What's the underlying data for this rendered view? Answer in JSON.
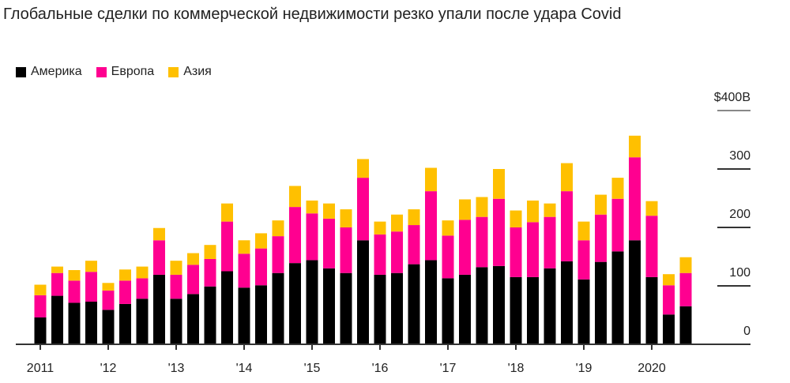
{
  "chart_data": {
    "type": "bar",
    "stacked": true,
    "title": "Глобальные сделки по коммерческой недвижимости резко упали после удара Covid",
    "xlabel": "",
    "ylabel": "",
    "ylim": [
      0,
      400
    ],
    "yticks": [
      0,
      100,
      200,
      300,
      400
    ],
    "ytick_labels": [
      "0",
      "100",
      "200",
      "300",
      "$400B"
    ],
    "xtick_labels": [
      "2011",
      "'12",
      "'13",
      "'14",
      "'15",
      "'16",
      "'17",
      "'18",
      "'19",
      "2020"
    ],
    "categories": [
      "2011 Q1",
      "2011 Q2",
      "2011 Q3",
      "2011 Q4",
      "2012 Q1",
      "2012 Q2",
      "2012 Q3",
      "2012 Q4",
      "2013 Q1",
      "2013 Q2",
      "2013 Q3",
      "2013 Q4",
      "2014 Q1",
      "2014 Q2",
      "2014 Q3",
      "2014 Q4",
      "2015 Q1",
      "2015 Q2",
      "2015 Q3",
      "2015 Q4",
      "2016 Q1",
      "2016 Q2",
      "2016 Q3",
      "2016 Q4",
      "2017 Q1",
      "2017 Q2",
      "2017 Q3",
      "2017 Q4",
      "2018 Q1",
      "2018 Q2",
      "2018 Q3",
      "2018 Q4",
      "2019 Q1",
      "2019 Q2",
      "2019 Q3",
      "2019 Q4",
      "2020 Q1",
      "2020 Q2",
      "2020 Q3"
    ],
    "legend_position": "top-left",
    "series": [
      {
        "name": "Америка",
        "color": "#000000",
        "values": [
          46,
          83,
          71,
          73,
          59,
          69,
          78,
          119,
          78,
          86,
          99,
          125,
          97,
          101,
          122,
          139,
          144,
          130,
          122,
          178,
          119,
          122,
          137,
          144,
          113,
          119,
          132,
          134,
          115,
          115,
          130,
          142,
          111,
          141,
          159,
          178,
          115,
          51,
          65
        ]
      },
      {
        "name": "Европа",
        "color": "#ff0090",
        "values": [
          38,
          39,
          38,
          51,
          33,
          40,
          35,
          59,
          41,
          50,
          47,
          85,
          58,
          63,
          63,
          96,
          80,
          85,
          78,
          107,
          69,
          71,
          67,
          118,
          73,
          94,
          86,
          115,
          85,
          94,
          88,
          120,
          67,
          81,
          90,
          142,
          105,
          50,
          57
        ]
      },
      {
        "name": "Азия",
        "color": "#ffc000",
        "values": [
          18,
          11,
          18,
          19,
          13,
          19,
          20,
          21,
          24,
          20,
          24,
          31,
          23,
          26,
          27,
          36,
          22,
          26,
          31,
          32,
          22,
          29,
          27,
          40,
          26,
          35,
          34,
          51,
          29,
          37,
          23,
          48,
          32,
          34,
          36,
          37,
          25,
          19,
          27
        ]
      }
    ]
  }
}
